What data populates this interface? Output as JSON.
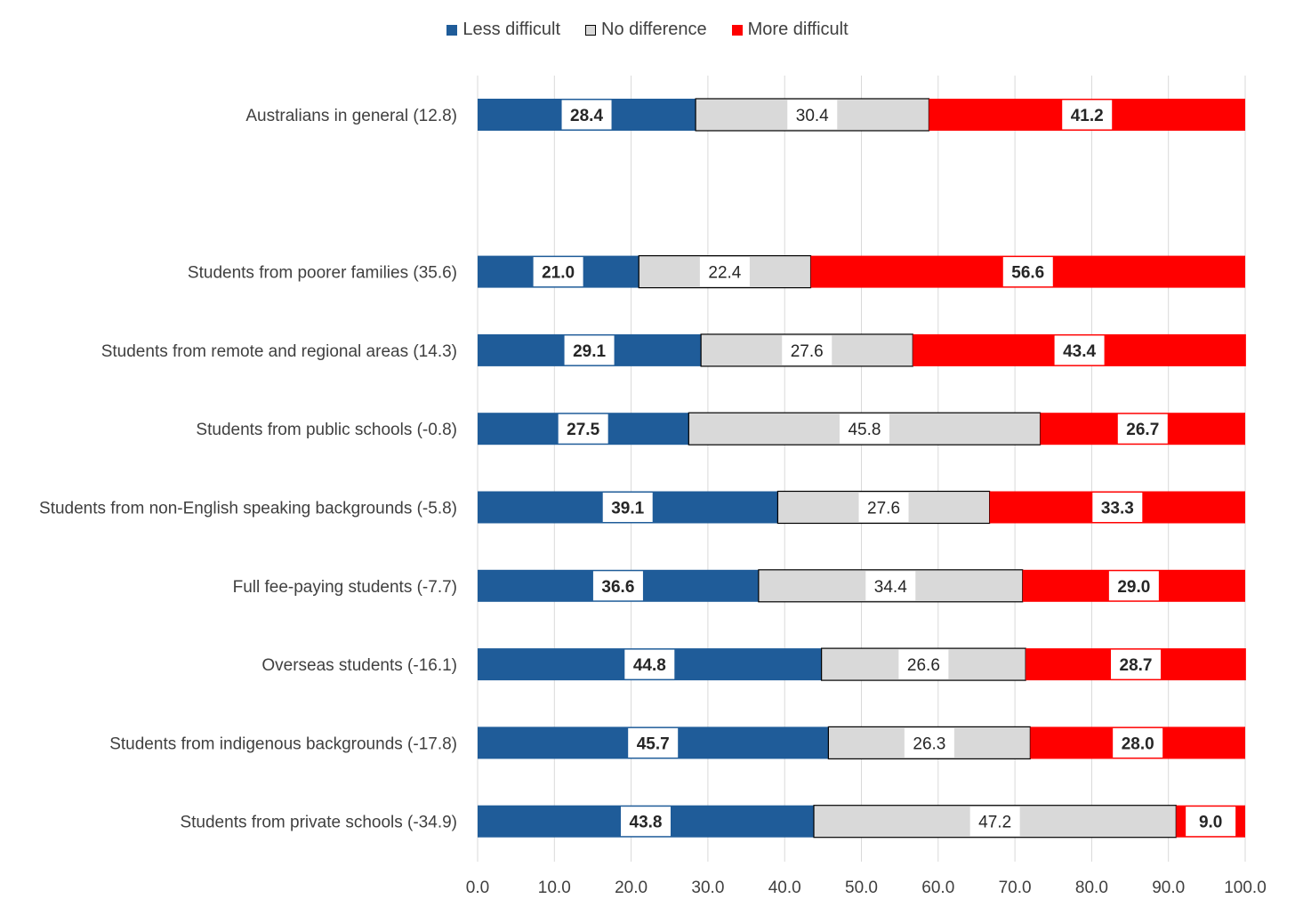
{
  "chart_data": {
    "type": "bar",
    "orientation": "horizontal",
    "stacked": true,
    "percent_stacked": true,
    "categories": [
      "Australians in general (12.8)",
      "",
      "Students from poorer families (35.6)",
      "Students from remote and regional areas (14.3)",
      "Students from public schools (-0.8)",
      "Students from non-English speaking backgrounds (-5.8)",
      "Full fee-paying students (-7.7)",
      "Overseas students (-16.1)",
      "Students from indigenous backgrounds (-17.8)",
      "Students from private schools (-34.9)"
    ],
    "series": [
      {
        "name": "Less difficult",
        "color": "#1f5c99",
        "values": [
          28.4,
          null,
          21.0,
          29.1,
          27.5,
          39.1,
          36.6,
          44.8,
          45.7,
          43.8
        ]
      },
      {
        "name": "No difference",
        "color": "#d9d9d9",
        "values": [
          30.4,
          null,
          22.4,
          27.6,
          45.8,
          27.6,
          34.4,
          26.6,
          26.3,
          47.2
        ]
      },
      {
        "name": "More difficult",
        "color": "#ff0000",
        "values": [
          41.2,
          null,
          56.6,
          43.4,
          26.7,
          33.3,
          29.0,
          28.7,
          28.0,
          9.0
        ]
      }
    ],
    "xlim": [
      0,
      100
    ],
    "xticks": [
      "0.0",
      "10.0",
      "20.0",
      "30.0",
      "40.0",
      "50.0",
      "60.0",
      "70.0",
      "80.0",
      "90.0",
      "100.0"
    ],
    "grid": "vertical",
    "legend": "top-center",
    "title": "",
    "xlabel": "",
    "ylabel": ""
  }
}
